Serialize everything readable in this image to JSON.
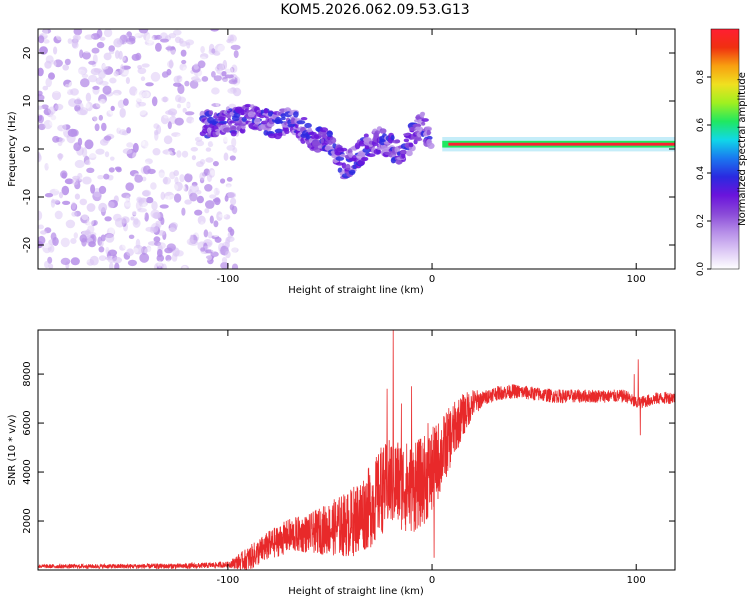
{
  "title": "KOM5.2026.062.09.53.G13",
  "colors": {
    "axis": "#000000",
    "snr_line": "#e8292a",
    "background": "#ffffff"
  },
  "chart_data": [
    {
      "type": "heatmap",
      "name": "spectrogram",
      "xlabel": "Height of straight line (km)",
      "ylabel": "Frequency (Hz)",
      "xlim": [
        -193,
        119
      ],
      "ylim": [
        -25,
        25
      ],
      "xticks": [
        -100,
        0,
        100
      ],
      "yticks": [
        -20,
        -10,
        0,
        10,
        20
      ],
      "xtick_labels": [
        "-100",
        "0",
        "100"
      ],
      "ytick_labels": [
        "-20",
        "-10",
        "0",
        "10",
        "20"
      ],
      "colorbar": {
        "label": "Normalized spectral amplitude",
        "range": [
          0,
          1
        ],
        "ticks": [
          0.0,
          0.2,
          0.4,
          0.6,
          0.8
        ],
        "tick_labels": [
          "0.0",
          "0.2",
          "0.4",
          "0.6",
          "0.8"
        ],
        "colormap": [
          "#ffffff",
          "#dcc8f5",
          "#b68ee8",
          "#8a4ad8",
          "#6a14dc",
          "#2a2ae0",
          "#1a78f0",
          "#10d8e8",
          "#20e860",
          "#a0f020",
          "#f0e020",
          "#f8a010",
          "#f03010",
          "#ff1e32"
        ]
      },
      "features": {
        "noise_region_x": [
          -193,
          -95
        ],
        "ridge_track": [
          [
            -112,
            5
          ],
          [
            -97,
            5.5
          ],
          [
            -90,
            6.5
          ],
          [
            -85,
            7
          ],
          [
            -78,
            5
          ],
          [
            -70,
            6
          ],
          [
            -60,
            3
          ],
          [
            -50,
            1
          ],
          [
            -42,
            -3.5
          ],
          [
            -35,
            -1
          ],
          [
            -28,
            2.5
          ],
          [
            -20,
            0
          ],
          [
            -15,
            -1
          ],
          [
            -10,
            3
          ],
          [
            -5,
            5
          ],
          [
            0,
            1.5
          ],
          [
            10,
            1
          ],
          [
            40,
            1
          ],
          [
            70,
            1
          ],
          [
            90,
            1
          ],
          [
            100,
            1.5
          ],
          [
            119,
            1
          ]
        ],
        "dominant_line_frequency": 1,
        "dominant_line_x": [
          5,
          119
        ]
      }
    },
    {
      "type": "line",
      "name": "snr",
      "xlabel": "Height of straight line (km)",
      "ylabel": "SNR (10 * v/v)",
      "xlim": [
        -193,
        119
      ],
      "ylim": [
        0,
        9800
      ],
      "xticks": [
        -100,
        0,
        100
      ],
      "yticks": [
        2000,
        4000,
        6000,
        8000
      ],
      "xtick_labels": [
        "-100",
        "0",
        "100"
      ],
      "ytick_labels": [
        "2000",
        "4000",
        "6000",
        "8000"
      ],
      "series": [
        {
          "name": "SNR",
          "envelope": [
            [
              -193,
              150
            ],
            [
              -150,
              150
            ],
            [
              -120,
              160
            ],
            [
              -100,
              220
            ],
            [
              -90,
              450
            ],
            [
              -80,
              1000
            ],
            [
              -70,
              1400
            ],
            [
              -60,
              1500
            ],
            [
              -50,
              1700
            ],
            [
              -40,
              1900
            ],
            [
              -30,
              2600
            ],
            [
              -25,
              3200
            ],
            [
              -20,
              3600
            ],
            [
              -15,
              3500
            ],
            [
              -10,
              3300
            ],
            [
              -5,
              3600
            ],
            [
              0,
              4000
            ],
            [
              5,
              4800
            ],
            [
              10,
              5600
            ],
            [
              15,
              6300
            ],
            [
              20,
              6800
            ],
            [
              30,
              7200
            ],
            [
              40,
              7300
            ],
            [
              60,
              7100
            ],
            [
              80,
              7100
            ],
            [
              95,
              7100
            ],
            [
              100,
              6800
            ],
            [
              110,
              7000
            ],
            [
              119,
              7050
            ]
          ],
          "noise_amplitude": [
            [
              -193,
              80
            ],
            [
              -100,
              120
            ],
            [
              -90,
              500
            ],
            [
              -60,
              800
            ],
            [
              -30,
              1700
            ],
            [
              -15,
              1900
            ],
            [
              0,
              1800
            ],
            [
              15,
              900
            ],
            [
              25,
              300
            ],
            [
              119,
              250
            ]
          ],
          "spikes": [
            [
              -19,
              9800
            ],
            [
              -22,
              7400
            ],
            [
              -10,
              7500
            ],
            [
              -15,
              6800
            ],
            [
              -8,
              5200
            ],
            [
              -25,
              5000
            ],
            [
              -2,
              6000
            ],
            [
              1,
              500
            ],
            [
              99,
              8000
            ],
            [
              101,
              8600
            ],
            [
              102,
              5500
            ]
          ]
        }
      ]
    }
  ]
}
